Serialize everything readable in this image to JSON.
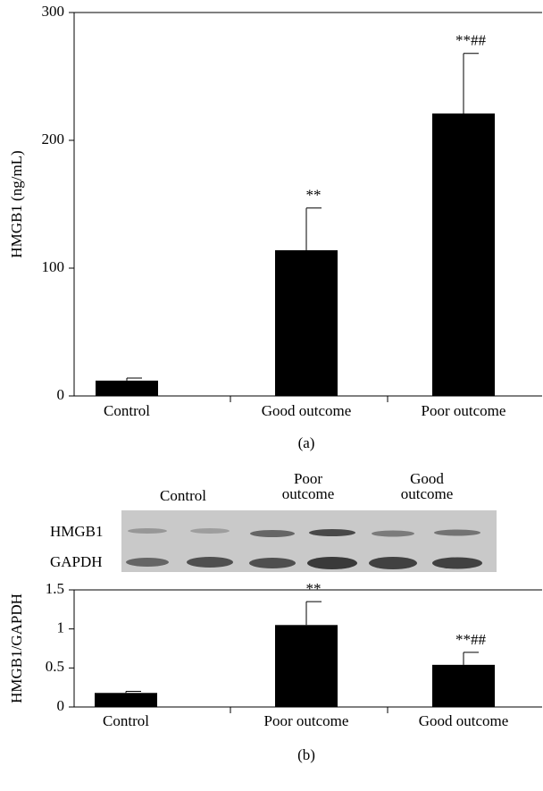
{
  "chart_data": [
    {
      "type": "bar",
      "y_label": "HMGB1 (ng/mL)",
      "panel_label": "(a)",
      "categories": [
        "Control",
        "Good outcome",
        "Poor outcome"
      ],
      "values": [
        12,
        114,
        221
      ],
      "errors": [
        2,
        33,
        47
      ],
      "annotations": [
        null,
        "**",
        "**##"
      ],
      "color": "#000000",
      "ylim": [
        0,
        300
      ],
      "yticks": [
        0,
        100,
        200,
        300
      ]
    },
    {
      "type": "bar",
      "y_label": "HMGB1/GAPDH",
      "panel_label": "(b)",
      "categories": [
        "Control",
        "Poor outcome",
        "Good outcome"
      ],
      "values": [
        0.18,
        1.05,
        0.54
      ],
      "errors": [
        0.02,
        0.3,
        0.16
      ],
      "annotations": [
        null,
        "**",
        "**##"
      ],
      "color": "#000000",
      "ylim": [
        0,
        1.5
      ],
      "yticks": [
        0,
        0.5,
        1,
        1.5
      ]
    }
  ],
  "blot": {
    "lanes": [
      [
        "Control"
      ],
      [
        "Poor",
        "outcome"
      ],
      [
        "Good",
        "outcome"
      ]
    ],
    "rows": [
      "HMGB1",
      "GAPDH"
    ]
  }
}
